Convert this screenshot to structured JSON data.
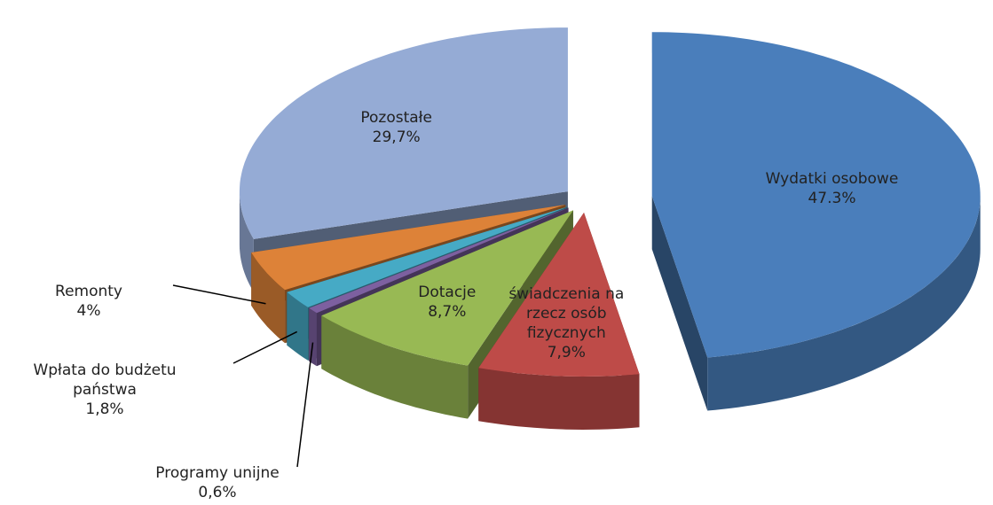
{
  "chart_data": {
    "type": "pie",
    "categories": [
      "Wydatki osobowe",
      "świadczenia na rzecz osób fizycznych",
      "Dotacje",
      "Programy unijne",
      "Wpłata do budżetu państwa",
      "Remonty",
      "Pozostałe"
    ],
    "values": [
      47.3,
      7.9,
      8.7,
      0.6,
      1.8,
      4,
      29.7
    ],
    "value_labels": [
      "47.3%",
      "7,9%",
      "8,7%",
      "0,6%",
      "1,8%",
      "4%",
      "29,7%"
    ],
    "colors": [
      "#4a7ebb",
      "#be4b48",
      "#98b954",
      "#7d60a0",
      "#46aac5",
      "#dd8238",
      "#95abd5"
    ]
  }
}
